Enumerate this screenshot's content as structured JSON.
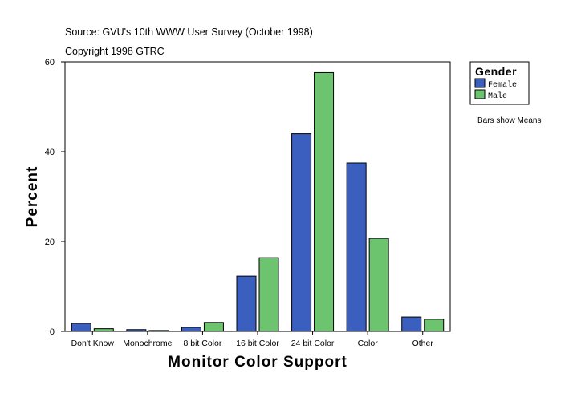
{
  "chart_data": {
    "type": "bar",
    "source_line": "Source: GVU's 10th WWW User Survey (October 1998)",
    "copyright_line": "Copyright 1998 GTRC",
    "xlabel": "Monitor Color Support",
    "ylabel": "Percent",
    "ylim": [
      0,
      60
    ],
    "yticks": [
      0,
      20,
      40,
      60
    ],
    "grid": false,
    "legend_placement": "top-right",
    "legend_title": "Gender",
    "note": "Bars show Means",
    "categories": [
      "Don't Know",
      "Monochrome",
      "8 bit Color",
      "16 bit Color",
      "24 bit Color",
      "Color",
      "Other"
    ],
    "series": [
      {
        "name": "Female",
        "color": "#3a5fbf",
        "values": [
          1.8,
          0.4,
          0.9,
          12.3,
          44.0,
          37.5,
          3.2
        ]
      },
      {
        "name": "Male",
        "color": "#6cc46e",
        "values": [
          0.6,
          0.2,
          2.0,
          16.4,
          57.6,
          20.7,
          2.7
        ]
      }
    ]
  }
}
